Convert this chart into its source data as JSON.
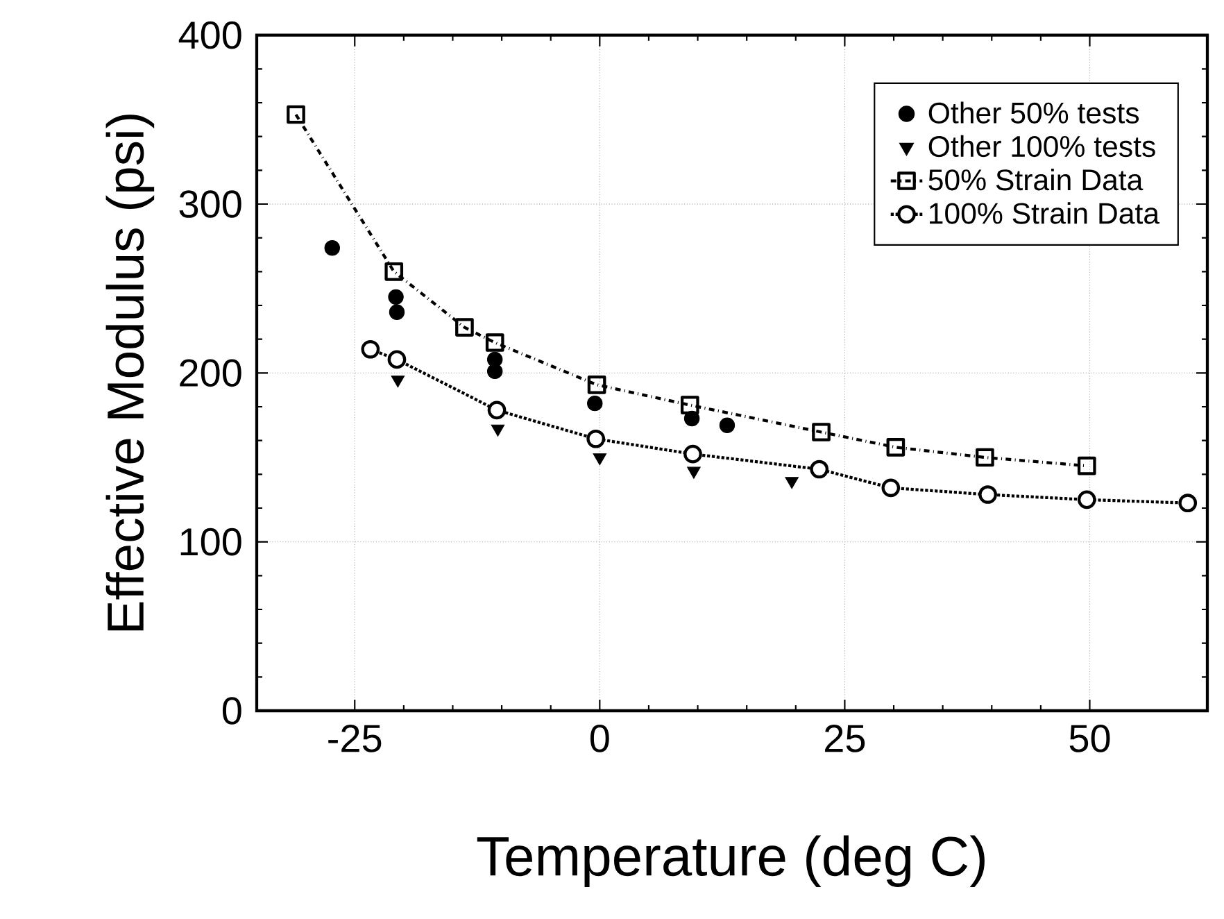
{
  "chart_data": {
    "type": "line",
    "xlabel": "Temperature (deg C)",
    "ylabel": "Effective Modulus (psi)",
    "xlim": [
      -35,
      62
    ],
    "ylim": [
      0,
      400
    ],
    "xticks": [
      -25,
      0,
      25,
      50
    ],
    "yticks": [
      0,
      100,
      200,
      300,
      400
    ],
    "grid": true,
    "legend": "top right",
    "series": [
      {
        "name": "Other 50% tests",
        "type": "scatter",
        "marker": "circle",
        "color": "#000000",
        "x": [
          -27.3,
          -20.8,
          -20.7,
          -10.7,
          -10.7,
          -0.5,
          9.4,
          13
        ],
        "values": [
          274,
          245,
          236,
          208,
          201,
          182,
          173,
          169
        ]
      },
      {
        "name": "Other 100% tests",
        "type": "scatter",
        "marker": "triangle",
        "color": "#000000",
        "x": [
          -20.6,
          -10.4,
          0,
          9.6,
          19.6
        ],
        "values": [
          196,
          167,
          150,
          142,
          136
        ]
      },
      {
        "name": "50% Strain Data",
        "marker": "square",
        "line_style": "dashed",
        "color": "#000000",
        "x": [
          -31,
          -21,
          -13.8,
          -10.7,
          -0.3,
          9.2,
          22.6,
          30.2,
          39.3,
          49.7
        ],
        "values": [
          353,
          260,
          227,
          218,
          193,
          181,
          165,
          156,
          150,
          145
        ]
      },
      {
        "name": "100% Strain Data",
        "marker": "circle",
        "line_style": "dotted",
        "color": "#000000",
        "x": [
          -23.4,
          -20.7,
          -10.5,
          -0.4,
          9.5,
          22.4,
          29.7,
          39.6,
          49.7,
          60
        ],
        "values": [
          214,
          208,
          178,
          161,
          152,
          143,
          132,
          128,
          125,
          123
        ]
      }
    ]
  }
}
